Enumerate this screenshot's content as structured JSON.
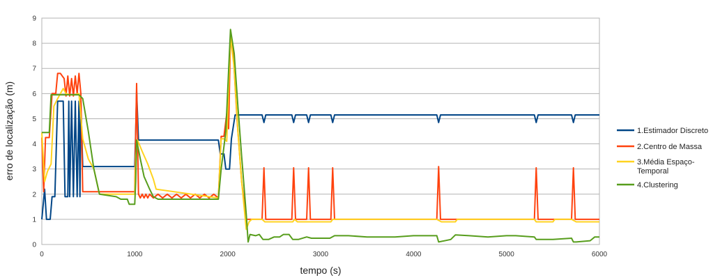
{
  "chart_data": {
    "type": "line",
    "xlabel": "tempo (s)",
    "ylabel": "erro de localização (m)",
    "xlim": [
      0,
      6000
    ],
    "ylim": [
      0,
      9
    ],
    "xticks": [
      "0",
      "1000",
      "2000",
      "3000",
      "4000",
      "5000",
      "6000"
    ],
    "yticks": [
      "0",
      "1",
      "2",
      "3",
      "4",
      "5",
      "6",
      "7",
      "8",
      "9"
    ],
    "grid": true,
    "legend_position": "right",
    "series": [
      {
        "name": "1.Estimador Discreto",
        "color": "#004586",
        "points": [
          [
            0,
            1.0
          ],
          [
            30,
            2.2
          ],
          [
            50,
            1.0
          ],
          [
            90,
            1.0
          ],
          [
            110,
            1.9
          ],
          [
            140,
            1.9
          ],
          [
            170,
            5.7
          ],
          [
            230,
            5.7
          ],
          [
            250,
            1.9
          ],
          [
            280,
            1.9
          ],
          [
            290,
            5.7
          ],
          [
            300,
            1.9
          ],
          [
            320,
            5.7
          ],
          [
            340,
            1.9
          ],
          [
            360,
            5.7
          ],
          [
            380,
            1.9
          ],
          [
            400,
            5.7
          ],
          [
            410,
            1.9
          ],
          [
            420,
            5.7
          ],
          [
            440,
            3.1
          ],
          [
            1000,
            3.1
          ],
          [
            1010,
            4.5
          ],
          [
            1020,
            6.1
          ],
          [
            1040,
            4.15
          ],
          [
            1900,
            4.15
          ],
          [
            1920,
            3.6
          ],
          [
            1960,
            3.6
          ],
          [
            1980,
            3.0
          ],
          [
            2020,
            3.0
          ],
          [
            2040,
            4.2
          ],
          [
            2080,
            5.15
          ],
          [
            2370,
            5.15
          ],
          [
            2390,
            4.85
          ],
          [
            2410,
            5.15
          ],
          [
            2690,
            5.15
          ],
          [
            2710,
            4.85
          ],
          [
            2730,
            5.15
          ],
          [
            2850,
            5.15
          ],
          [
            2870,
            4.85
          ],
          [
            2890,
            5.15
          ],
          [
            3110,
            5.15
          ],
          [
            3130,
            4.85
          ],
          [
            3150,
            5.15
          ],
          [
            4250,
            5.15
          ],
          [
            4270,
            4.85
          ],
          [
            4290,
            5.15
          ],
          [
            5300,
            5.15
          ],
          [
            5320,
            4.85
          ],
          [
            5340,
            5.15
          ],
          [
            5700,
            5.15
          ],
          [
            5720,
            4.85
          ],
          [
            5740,
            5.15
          ],
          [
            6000,
            5.15
          ]
        ]
      },
      {
        "name": "2.Centro de Massa",
        "color": "#ff420e",
        "points": [
          [
            0,
            4.25
          ],
          [
            20,
            2.1
          ],
          [
            40,
            4.25
          ],
          [
            80,
            4.25
          ],
          [
            110,
            6.0
          ],
          [
            150,
            6.0
          ],
          [
            170,
            6.8
          ],
          [
            200,
            6.8
          ],
          [
            220,
            6.7
          ],
          [
            240,
            6.6
          ],
          [
            260,
            5.9
          ],
          [
            280,
            6.7
          ],
          [
            300,
            5.9
          ],
          [
            320,
            6.6
          ],
          [
            340,
            5.9
          ],
          [
            360,
            6.7
          ],
          [
            380,
            6.0
          ],
          [
            400,
            6.8
          ],
          [
            420,
            6.0
          ],
          [
            440,
            2.1
          ],
          [
            1000,
            2.1
          ],
          [
            1010,
            4.5
          ],
          [
            1020,
            6.4
          ],
          [
            1040,
            2.0
          ],
          [
            1060,
            1.85
          ],
          [
            1080,
            2.0
          ],
          [
            1100,
            1.85
          ],
          [
            1120,
            2.0
          ],
          [
            1140,
            1.85
          ],
          [
            1160,
            2.0
          ],
          [
            1200,
            1.85
          ],
          [
            1250,
            2.0
          ],
          [
            1300,
            1.85
          ],
          [
            1350,
            2.0
          ],
          [
            1400,
            1.85
          ],
          [
            1450,
            2.0
          ],
          [
            1500,
            1.85
          ],
          [
            1550,
            2.0
          ],
          [
            1600,
            1.85
          ],
          [
            1650,
            2.0
          ],
          [
            1700,
            1.85
          ],
          [
            1750,
            2.0
          ],
          [
            1800,
            1.85
          ],
          [
            1850,
            2.0
          ],
          [
            1900,
            1.85
          ],
          [
            1930,
            4.3
          ],
          [
            1960,
            4.3
          ],
          [
            1990,
            5.2
          ],
          [
            2010,
            4.6
          ],
          [
            2030,
            8.3
          ],
          [
            2060,
            7.6
          ],
          [
            2100,
            5.0
          ],
          [
            2150,
            2.5
          ],
          [
            2200,
            1.0
          ],
          [
            2370,
            1.0
          ],
          [
            2390,
            3.05
          ],
          [
            2410,
            1.0
          ],
          [
            2690,
            1.0
          ],
          [
            2710,
            3.05
          ],
          [
            2730,
            1.0
          ],
          [
            2850,
            1.0
          ],
          [
            2870,
            3.05
          ],
          [
            2890,
            1.0
          ],
          [
            3110,
            1.0
          ],
          [
            3130,
            3.05
          ],
          [
            3150,
            1.0
          ],
          [
            4250,
            1.0
          ],
          [
            4270,
            3.1
          ],
          [
            4290,
            1.0
          ],
          [
            5300,
            1.0
          ],
          [
            5320,
            3.05
          ],
          [
            5340,
            1.0
          ],
          [
            5700,
            1.0
          ],
          [
            5720,
            3.05
          ],
          [
            5740,
            1.0
          ],
          [
            5950,
            1.0
          ],
          [
            6000,
            1.0
          ]
        ]
      },
      {
        "name": "3.Média Espaço-Temporal",
        "color": "#ffd320",
        "points": [
          [
            0,
            4.45
          ],
          [
            30,
            2.5
          ],
          [
            60,
            2.9
          ],
          [
            100,
            3.2
          ],
          [
            130,
            5.5
          ],
          [
            170,
            5.8
          ],
          [
            230,
            6.2
          ],
          [
            260,
            6.0
          ],
          [
            300,
            5.95
          ],
          [
            350,
            5.95
          ],
          [
            400,
            6.0
          ],
          [
            440,
            4.2
          ],
          [
            500,
            3.4
          ],
          [
            560,
            3.0
          ],
          [
            620,
            2.0
          ],
          [
            700,
            2.0
          ],
          [
            1000,
            2.0
          ],
          [
            1010,
            3.5
          ],
          [
            1030,
            4.15
          ],
          [
            1080,
            3.7
          ],
          [
            1140,
            3.2
          ],
          [
            1200,
            2.6
          ],
          [
            1230,
            2.2
          ],
          [
            1900,
            1.85
          ],
          [
            1930,
            4.2
          ],
          [
            1960,
            4.2
          ],
          [
            1990,
            4.1
          ],
          [
            2030,
            8.3
          ],
          [
            2070,
            7.0
          ],
          [
            2110,
            4.5
          ],
          [
            2150,
            2.5
          ],
          [
            2200,
            0.6
          ],
          [
            2230,
            0.9
          ],
          [
            2260,
            1.0
          ],
          [
            2370,
            1.0
          ],
          [
            2400,
            0.9
          ],
          [
            2700,
            0.9
          ],
          [
            2720,
            1.0
          ],
          [
            2750,
            0.9
          ],
          [
            3110,
            0.9
          ],
          [
            3130,
            1.0
          ],
          [
            3200,
            1.0
          ],
          [
            4250,
            1.0
          ],
          [
            4300,
            0.9
          ],
          [
            4450,
            0.9
          ],
          [
            4470,
            1.0
          ],
          [
            5300,
            1.0
          ],
          [
            5320,
            0.9
          ],
          [
            5500,
            0.9
          ],
          [
            5520,
            1.0
          ],
          [
            5700,
            1.0
          ],
          [
            5750,
            0.9
          ],
          [
            5950,
            0.9
          ],
          [
            6000,
            0.9
          ]
        ]
      },
      {
        "name": "4.Clustering",
        "color": "#579d1c",
        "points": [
          [
            0,
            4.45
          ],
          [
            80,
            4.45
          ],
          [
            100,
            5.95
          ],
          [
            400,
            5.95
          ],
          [
            440,
            5.8
          ],
          [
            500,
            4.5
          ],
          [
            560,
            3.0
          ],
          [
            620,
            2.0
          ],
          [
            800,
            1.9
          ],
          [
            850,
            1.8
          ],
          [
            920,
            1.8
          ],
          [
            940,
            1.6
          ],
          [
            1000,
            1.6
          ],
          [
            1010,
            2.5
          ],
          [
            1020,
            4.15
          ],
          [
            1060,
            3.4
          ],
          [
            1100,
            2.7
          ],
          [
            1160,
            2.2
          ],
          [
            1200,
            1.9
          ],
          [
            1250,
            1.8
          ],
          [
            1900,
            1.8
          ],
          [
            1930,
            3.0
          ],
          [
            1980,
            4.5
          ],
          [
            2030,
            8.55
          ],
          [
            2070,
            7.6
          ],
          [
            2110,
            5.5
          ],
          [
            2150,
            3.5
          ],
          [
            2200,
            1.2
          ],
          [
            2220,
            0.1
          ],
          [
            2240,
            0.4
          ],
          [
            2300,
            0.35
          ],
          [
            2340,
            0.4
          ],
          [
            2380,
            0.2
          ],
          [
            2440,
            0.2
          ],
          [
            2500,
            0.3
          ],
          [
            2560,
            0.3
          ],
          [
            2600,
            0.4
          ],
          [
            2660,
            0.4
          ],
          [
            2700,
            0.2
          ],
          [
            2760,
            0.2
          ],
          [
            2850,
            0.3
          ],
          [
            2900,
            0.25
          ],
          [
            3100,
            0.25
          ],
          [
            3150,
            0.35
          ],
          [
            3300,
            0.35
          ],
          [
            3500,
            0.3
          ],
          [
            3800,
            0.3
          ],
          [
            4000,
            0.35
          ],
          [
            4250,
            0.35
          ],
          [
            4270,
            0.1
          ],
          [
            4400,
            0.2
          ],
          [
            4450,
            0.38
          ],
          [
            4600,
            0.35
          ],
          [
            4800,
            0.3
          ],
          [
            5000,
            0.35
          ],
          [
            5100,
            0.35
          ],
          [
            5300,
            0.3
          ],
          [
            5320,
            0.2
          ],
          [
            5500,
            0.2
          ],
          [
            5700,
            0.25
          ],
          [
            5720,
            0.1
          ],
          [
            5750,
            0.1
          ],
          [
            5900,
            0.15
          ],
          [
            5950,
            0.3
          ],
          [
            6000,
            0.3
          ]
        ]
      }
    ],
    "legend_labels": [
      [
        "1.Estimador Discreto"
      ],
      [
        "2.Centro de Massa"
      ],
      [
        "3.Média Espaço-",
        "Temporal"
      ],
      [
        "4.Clustering"
      ]
    ]
  }
}
